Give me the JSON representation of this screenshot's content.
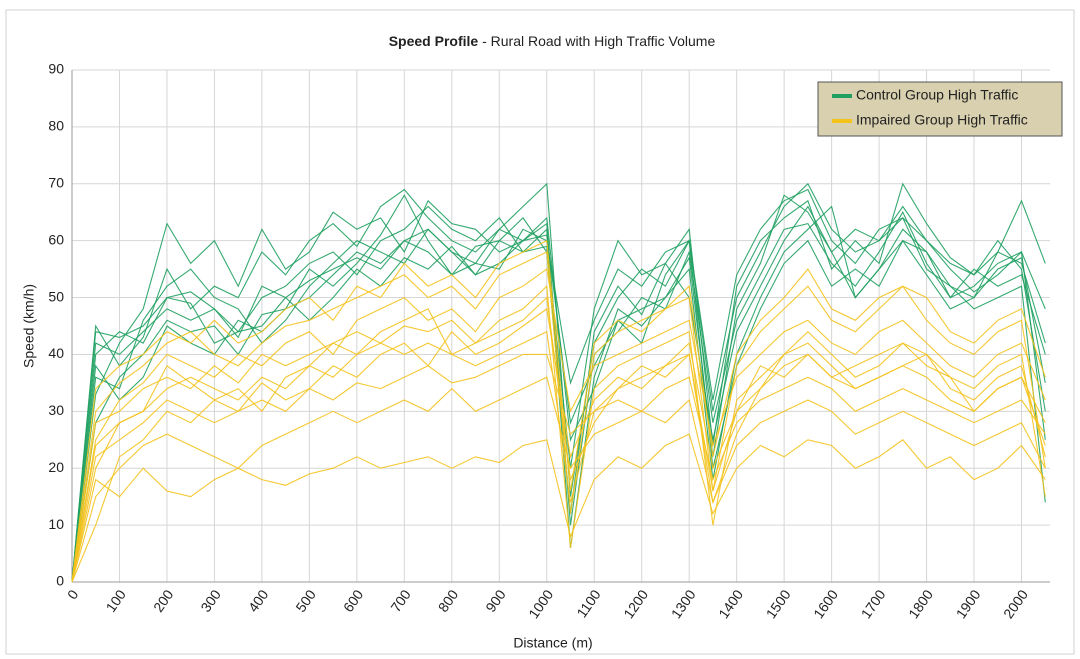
{
  "chart_data": {
    "type": "line",
    "title": "Speed Profile",
    "subtitle": "- Rural Road with High Traffic Volume",
    "x_label": "Distance (m)",
    "y_label": "Speed (km/h)",
    "x": [
      0,
      50,
      100,
      150,
      200,
      250,
      300,
      350,
      400,
      450,
      500,
      550,
      600,
      650,
      700,
      750,
      800,
      850,
      900,
      950,
      1000,
      1050,
      1100,
      1150,
      1200,
      1250,
      1300,
      1350,
      1400,
      1450,
      1500,
      1550,
      1600,
      1650,
      1700,
      1750,
      1800,
      1850,
      1900,
      1950,
      2000,
      2050
    ],
    "xlim": [
      0,
      2060
    ],
    "xticks": [
      0,
      100,
      200,
      300,
      400,
      500,
      600,
      700,
      800,
      900,
      1000,
      1100,
      1200,
      1300,
      1400,
      1500,
      1600,
      1700,
      1800,
      1900,
      2000
    ],
    "ylim": [
      0,
      90
    ],
    "yticks": [
      0,
      10,
      20,
      30,
      40,
      50,
      60,
      70,
      80,
      90
    ],
    "grid": true,
    "legend": "upper right",
    "series": [
      {
        "name": "Control Group High Traffic",
        "color": "#1fa060",
        "values": [
          [
            0,
            45,
            38,
            43,
            55,
            48,
            52,
            50,
            58,
            54,
            60,
            63,
            59,
            66,
            69,
            64,
            60,
            58,
            62,
            66,
            70,
            15,
            42,
            50,
            55,
            52,
            60,
            30,
            50,
            58,
            66,
            70,
            62,
            58,
            60,
            64,
            55,
            52,
            50,
            58,
            56,
            42
          ],
          [
            0,
            33,
            42,
            48,
            63,
            56,
            60,
            52,
            62,
            55,
            58,
            65,
            62,
            64,
            58,
            67,
            63,
            62,
            58,
            60,
            61,
            28,
            38,
            46,
            48,
            50,
            57,
            22,
            48,
            56,
            68,
            65,
            58,
            62,
            60,
            66,
            60,
            55,
            51,
            54,
            58,
            48
          ],
          [
            0,
            28,
            36,
            40,
            46,
            44,
            45,
            40,
            47,
            48,
            55,
            52,
            56,
            61,
            68,
            60,
            54,
            59,
            60,
            64,
            58,
            12,
            44,
            52,
            47,
            56,
            62,
            24,
            52,
            60,
            64,
            67,
            55,
            60,
            56,
            70,
            63,
            57,
            54,
            60,
            55,
            30
          ],
          [
            0,
            40,
            44,
            42,
            50,
            49,
            42,
            44,
            45,
            50,
            46,
            50,
            55,
            52,
            57,
            55,
            59,
            54,
            60,
            58,
            62,
            6,
            36,
            48,
            45,
            50,
            55,
            18,
            40,
            50,
            58,
            62,
            66,
            50,
            55,
            62,
            58,
            50,
            52,
            56,
            58,
            25
          ],
          [
            0,
            36,
            34,
            46,
            52,
            55,
            50,
            48,
            42,
            46,
            52,
            56,
            60,
            58,
            56,
            62,
            58,
            56,
            55,
            62,
            60,
            35,
            46,
            55,
            52,
            58,
            60,
            32,
            54,
            62,
            67,
            69,
            60,
            56,
            62,
            64,
            60,
            56,
            54,
            58,
            67,
            56
          ],
          [
            0,
            42,
            40,
            44,
            48,
            46,
            48,
            44,
            50,
            52,
            56,
            58,
            54,
            60,
            62,
            66,
            62,
            60,
            64,
            58,
            59,
            20,
            48,
            60,
            54,
            56,
            50,
            25,
            44,
            52,
            60,
            66,
            58,
            50,
            55,
            60,
            58,
            52,
            48,
            50,
            52,
            14
          ],
          [
            0,
            38,
            32,
            36,
            45,
            42,
            40,
            46,
            44,
            48,
            50,
            54,
            58,
            56,
            60,
            58,
            54,
            56,
            62,
            60,
            63,
            10,
            40,
            44,
            50,
            48,
            58,
            28,
            46,
            54,
            62,
            63,
            56,
            52,
            58,
            65,
            56,
            50,
            55,
            52,
            54,
            40
          ],
          [
            0,
            44,
            43,
            45,
            50,
            51,
            48,
            43,
            52,
            50,
            53,
            55,
            57,
            55,
            60,
            62,
            58,
            54,
            56,
            60,
            64,
            25,
            34,
            46,
            42,
            54,
            60,
            20,
            38,
            48,
            56,
            60,
            52,
            55,
            52,
            60,
            54,
            48,
            50,
            55,
            57,
            35
          ]
        ]
      },
      {
        "name": "Impaired Group High Traffic",
        "color": "#f4c21c",
        "values": [
          [
            0,
            20,
            28,
            30,
            38,
            35,
            32,
            34,
            30,
            36,
            38,
            42,
            40,
            44,
            46,
            48,
            40,
            42,
            44,
            46,
            50,
            18,
            28,
            34,
            38,
            36,
            40,
            14,
            26,
            34,
            40,
            42,
            38,
            34,
            36,
            38,
            40,
            34,
            32,
            36,
            38,
            22
          ],
          [
            0,
            10,
            22,
            25,
            30,
            28,
            32,
            30,
            35,
            32,
            34,
            38,
            36,
            40,
            42,
            38,
            44,
            40,
            42,
            45,
            48,
            22,
            32,
            36,
            34,
            38,
            42,
            20,
            30,
            38,
            36,
            40,
            36,
            38,
            40,
            42,
            38,
            36,
            30,
            34,
            36,
            28
          ],
          [
            0,
            25,
            32,
            35,
            40,
            38,
            36,
            40,
            38,
            42,
            44,
            40,
            46,
            48,
            50,
            46,
            48,
            44,
            50,
            52,
            55,
            30,
            38,
            40,
            42,
            44,
            46,
            24,
            36,
            40,
            44,
            46,
            42,
            40,
            44,
            46,
            42,
            38,
            36,
            40,
            42,
            32
          ],
          [
            0,
            18,
            15,
            20,
            16,
            15,
            18,
            20,
            18,
            17,
            19,
            20,
            22,
            20,
            21,
            22,
            20,
            22,
            21,
            24,
            25,
            8,
            18,
            22,
            20,
            24,
            26,
            12,
            20,
            24,
            22,
            25,
            24,
            20,
            22,
            25,
            20,
            22,
            18,
            20,
            24,
            18
          ],
          [
            0,
            30,
            35,
            38,
            42,
            44,
            40,
            38,
            42,
            45,
            46,
            48,
            50,
            52,
            54,
            50,
            52,
            48,
            54,
            56,
            58,
            12,
            40,
            44,
            46,
            48,
            50,
            16,
            38,
            44,
            48,
            52,
            46,
            44,
            48,
            52,
            46,
            42,
            40,
            44,
            46,
            20
          ],
          [
            0,
            22,
            25,
            28,
            32,
            30,
            28,
            30,
            32,
            30,
            34,
            32,
            35,
            34,
            36,
            38,
            35,
            36,
            38,
            40,
            40,
            26,
            30,
            32,
            30,
            34,
            36,
            18,
            28,
            32,
            34,
            36,
            34,
            30,
            32,
            34,
            32,
            30,
            28,
            30,
            32,
            26
          ],
          [
            0,
            28,
            30,
            34,
            36,
            34,
            38,
            35,
            40,
            38,
            40,
            42,
            44,
            42,
            45,
            44,
            46,
            42,
            46,
            48,
            52,
            6,
            34,
            38,
            40,
            42,
            44,
            10,
            32,
            36,
            40,
            44,
            40,
            36,
            38,
            42,
            40,
            36,
            34,
            38,
            40,
            15
          ],
          [
            0,
            15,
            20,
            24,
            26,
            24,
            22,
            20,
            24,
            26,
            28,
            30,
            28,
            30,
            32,
            30,
            34,
            30,
            32,
            34,
            36,
            20,
            26,
            28,
            30,
            28,
            32,
            14,
            24,
            28,
            30,
            32,
            30,
            26,
            28,
            30,
            28,
            26,
            24,
            26,
            28,
            20
          ],
          [
            0,
            34,
            38,
            40,
            44,
            42,
            46,
            42,
            44,
            48,
            50,
            46,
            52,
            50,
            56,
            52,
            54,
            50,
            56,
            58,
            60,
            16,
            42,
            46,
            44,
            48,
            52,
            22,
            40,
            46,
            50,
            55,
            48,
            46,
            50,
            52,
            50,
            44,
            42,
            46,
            48,
            36
          ],
          [
            0,
            24,
            28,
            30,
            34,
            36,
            34,
            32,
            36,
            34,
            38,
            36,
            40,
            42,
            40,
            42,
            40,
            38,
            40,
            42,
            44,
            14,
            30,
            34,
            36,
            38,
            40,
            16,
            30,
            34,
            38,
            40,
            36,
            34,
            36,
            38,
            36,
            32,
            30,
            34,
            36,
            24
          ]
        ]
      }
    ]
  }
}
